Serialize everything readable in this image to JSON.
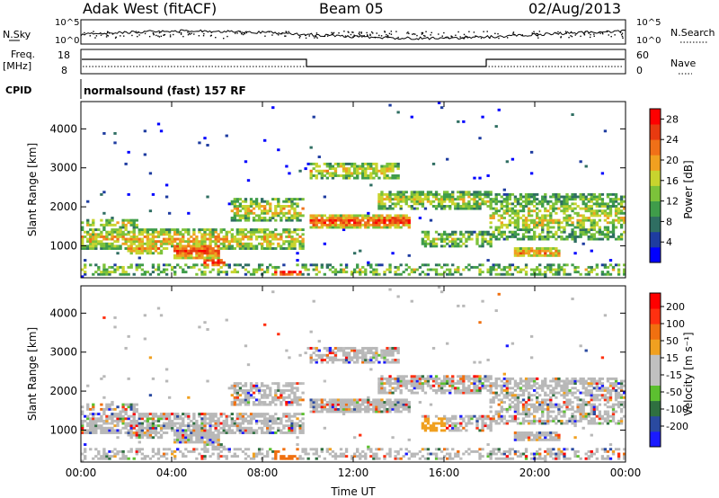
{
  "header": {
    "title": "Adak West (fitACF)",
    "beam": "Beam 05",
    "date": "02/Aug/2013"
  },
  "top_panels": {
    "nsky_label": "N.Sky",
    "nsearch_label": "N.Search",
    "noise_ticks": [
      "10^5",
      "10^0"
    ],
    "freq_label_1": "Freq.",
    "freq_label_2": "[MHz]",
    "freq_ticks": [
      "18",
      "8"
    ],
    "nave_label": "Nave",
    "nave_ticks": [
      "60",
      "0"
    ],
    "cpid_label": "CPID",
    "cpid_text": "normalsound (fast) 157 RF"
  },
  "colors": {
    "power": [
      "#0000ff",
      "#1e3ca0",
      "#2f6e62",
      "#3f9c4a",
      "#7cc23a",
      "#c8d42e",
      "#f0a020",
      "#f07018",
      "#e83a10",
      "#ff0000"
    ],
    "velocity": [
      "#1a1aff",
      "#2a4aa0",
      "#2f7040",
      "#5cc030",
      "#c0c0c0",
      "#c0c0c0",
      "#f0a020",
      "#f07010",
      "#ff3010",
      "#ff0000"
    ],
    "ground": "#b8b8b8"
  },
  "chart_data": [
    {
      "type": "heatmap",
      "title": "",
      "ylabel": "Slant Range [km]",
      "xlabel": "",
      "x_ticks": [
        "00:00",
        "04:00",
        "08:00",
        "12:00",
        "16:00",
        "20:00",
        "00:00"
      ],
      "x_range_hours": [
        0,
        24
      ],
      "y_ticks": [
        1000,
        2000,
        3000,
        4000
      ],
      "ylim": [
        180,
        4700
      ],
      "colorbar": {
        "label": "Power [dB]",
        "ticks": [
          4,
          8,
          12,
          16,
          20,
          24,
          28
        ],
        "range": [
          0,
          30
        ]
      }
    },
    {
      "type": "heatmap",
      "title": "",
      "ylabel": "Slant Range [km]",
      "xlabel": "Time UT",
      "x_ticks": [
        "00:00",
        "04:00",
        "08:00",
        "12:00",
        "16:00",
        "20:00",
        "00:00"
      ],
      "x_range_hours": [
        0,
        24
      ],
      "y_ticks": [
        1000,
        2000,
        3000,
        4000
      ],
      "ylim": [
        180,
        4700
      ],
      "colorbar": {
        "label": "Velocity [m s⁻¹]",
        "ticks": [
          200,
          100,
          50,
          15,
          -15,
          -50,
          -100,
          -200
        ]
      }
    }
  ]
}
